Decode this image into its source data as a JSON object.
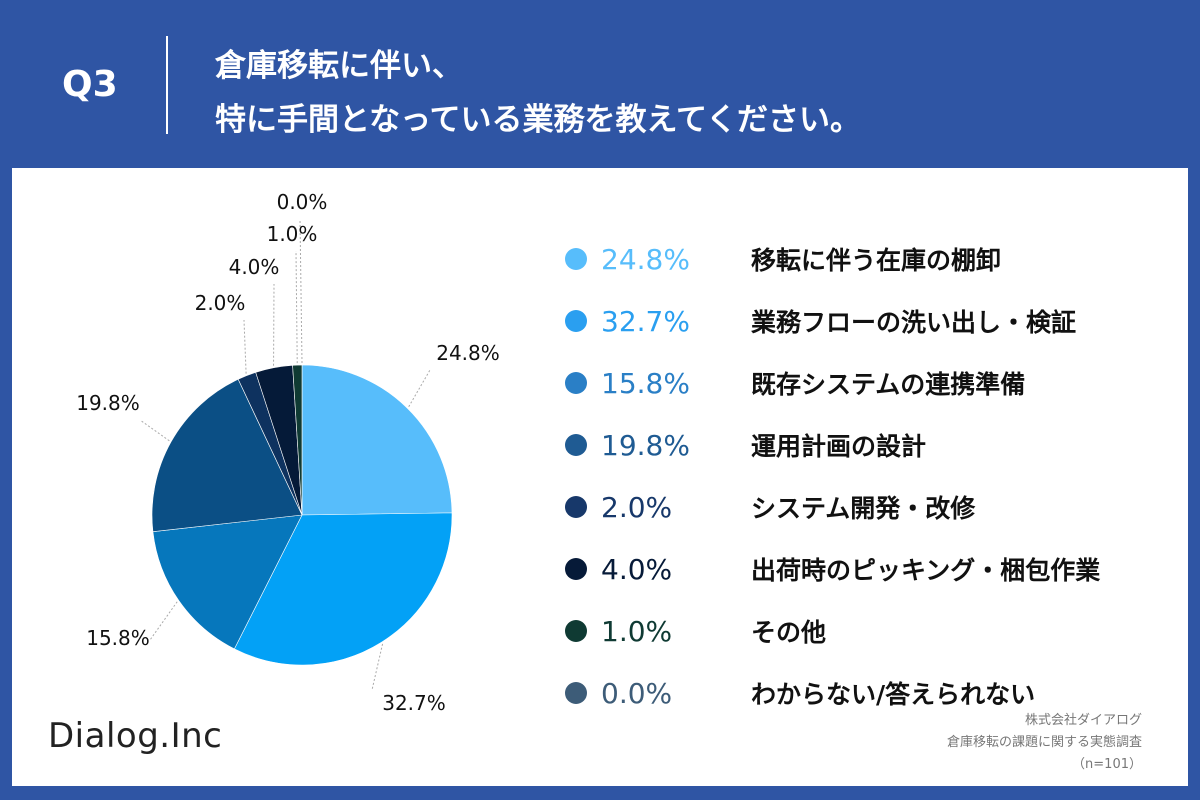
{
  "header": {
    "q_label": "Q3",
    "question_line1": "倉庫移転に伴い、",
    "question_line2": "特に手間となっている業務を教えてください。"
  },
  "chart_data": {
    "type": "pie",
    "title": "倉庫移転に伴い、特に手間となっている業務を教えてください。",
    "slices": [
      {
        "label": "移転に伴う在庫の棚卸",
        "value": 24.8,
        "display": "24.8%",
        "color": "#57bdfb"
      },
      {
        "label": "業務フローの洗い出し・検証",
        "value": 32.7,
        "display": "32.7%",
        "color": "#03a1f6"
      },
      {
        "label": "既存システムの連携準備",
        "value": 15.8,
        "display": "15.8%",
        "color": "#0677bc"
      },
      {
        "label": "運用計画の設計",
        "value": 19.8,
        "display": "19.8%",
        "color": "#0b4f85"
      },
      {
        "label": "システム開発・改修",
        "value": 2.0,
        "display": "2.0%",
        "color": "#0e325f"
      },
      {
        "label": "出荷時のピッキング・梱包作業",
        "value": 4.0,
        "display": "4.0%",
        "color": "#051a38"
      },
      {
        "label": "その他",
        "value": 1.0,
        "display": "1.0%",
        "color": "#0f3a33"
      },
      {
        "label": "わからない/答えられない",
        "value": 0.0,
        "display": "0.0%",
        "color": "#3d5c78"
      }
    ]
  },
  "legend": {
    "pct_colors": [
      "#57bdfb",
      "#2a9ff0",
      "#2a7fc6",
      "#1f5b93",
      "#17386a",
      "#061a38",
      "#0f3a33",
      "#3d5c78"
    ]
  },
  "footer": {
    "logo": "Dialog.Inc",
    "source_line1": "株式会社ダイアログ",
    "source_line2": "倉庫移転の課題に関する実態調査",
    "source_line3": "（n=101）"
  }
}
